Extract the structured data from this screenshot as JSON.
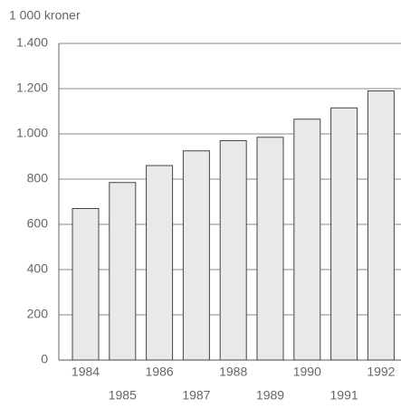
{
  "chart_data": {
    "type": "bar",
    "y_axis_label": "1 000 kroner",
    "categories": [
      "1984",
      "1985",
      "1986",
      "1987",
      "1988",
      "1989",
      "1990",
      "1991",
      "1992"
    ],
    "values": [
      670,
      785,
      860,
      925,
      970,
      985,
      1065,
      1115,
      1190
    ],
    "color": "#e9e9e9",
    "ylim": [
      0,
      1400
    ],
    "yticks": [
      0,
      200,
      400,
      600,
      800,
      {
        "value": 1000,
        "label": "1.000"
      },
      {
        "value": 1200,
        "label": "1.200"
      },
      {
        "value": 1400,
        "label": "1.400"
      }
    ],
    "grid": true
  }
}
